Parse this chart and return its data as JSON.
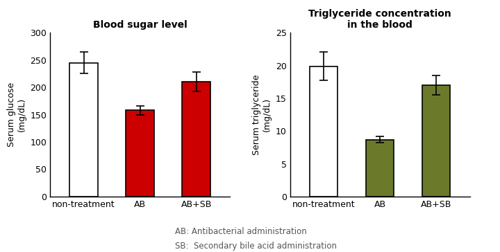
{
  "chart1": {
    "title": "Blood sugar level",
    "ylabel": "Serum glucose\n(mg/dL)",
    "categories": [
      "non-treatment",
      "AB",
      "AB+SB"
    ],
    "values": [
      245,
      158,
      210
    ],
    "errors": [
      20,
      8,
      18
    ],
    "bar_colors": [
      "#ffffff",
      "#cc0000",
      "#cc0000"
    ],
    "bar_edgecolors": [
      "#000000",
      "#000000",
      "#000000"
    ],
    "ylim": [
      0,
      300
    ],
    "yticks": [
      0,
      50,
      100,
      150,
      200,
      250,
      300
    ]
  },
  "chart2": {
    "title": "Triglyceride concentration\nin the blood",
    "ylabel": "Serum triglyceride\n(mg/dL)",
    "categories": [
      "non-treatment",
      "AB",
      "AB+SB"
    ],
    "values": [
      19.9,
      8.7,
      17.0
    ],
    "errors": [
      2.2,
      0.5,
      1.5
    ],
    "bar_colors": [
      "#ffffff",
      "#6b7a2a",
      "#6b7a2a"
    ],
    "bar_edgecolors": [
      "#000000",
      "#000000",
      "#000000"
    ],
    "ylim": [
      0,
      25
    ],
    "yticks": [
      0,
      5,
      10,
      15,
      20,
      25
    ]
  },
  "footnote_line1": "AB: Antibacterial administration",
  "footnote_line2": "SB:  Secondary bile acid administration",
  "background_color": "#ffffff",
  "bar_width": 0.5,
  "title_fontsize": 10,
  "label_fontsize": 9,
  "tick_fontsize": 9,
  "footnote_fontsize": 8.5
}
